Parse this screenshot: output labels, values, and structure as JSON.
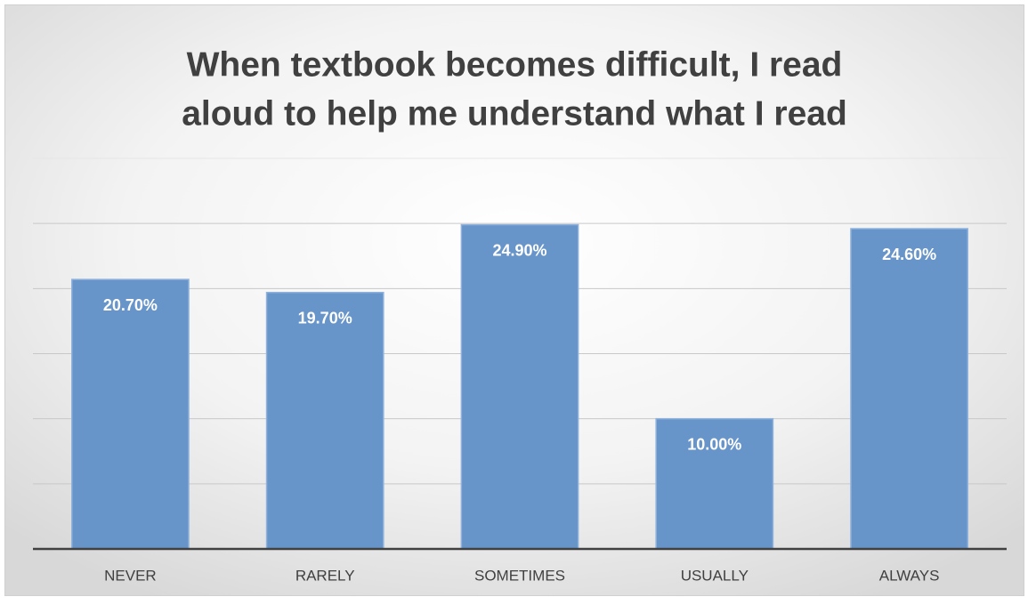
{
  "chart_data": {
    "type": "bar",
    "title": [
      "When textbook becomes difficult, I read",
      "aloud to help me understand what I read"
    ],
    "categories": [
      "NEVER",
      "RARELY",
      "SOMETIMES",
      "USUALLY",
      "ALWAYS"
    ],
    "values": [
      20.7,
      19.7,
      24.9,
      10.0,
      24.6
    ],
    "value_labels": [
      "20.70%",
      "19.70%",
      "24.90%",
      "10.00%",
      "24.60%"
    ],
    "color": "#6794c9",
    "ylim": [
      0,
      30
    ],
    "yticks": [
      0,
      5,
      10,
      15,
      20,
      25,
      30
    ],
    "grid": true
  }
}
